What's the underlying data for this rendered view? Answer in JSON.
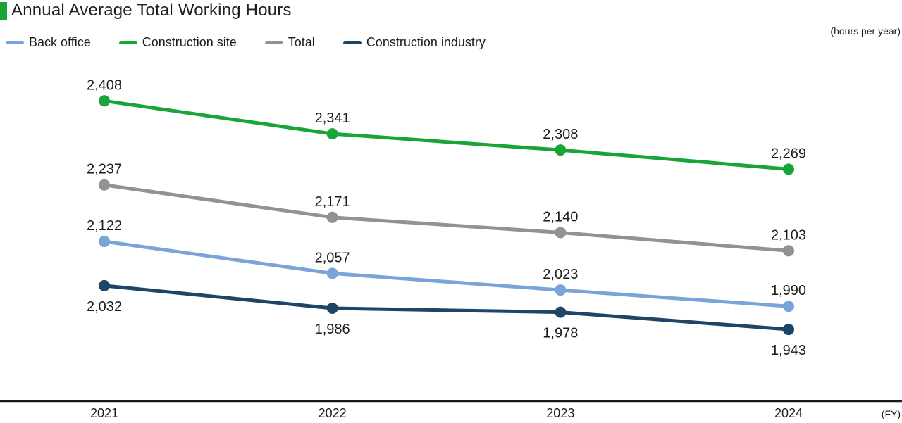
{
  "title": "Annual Average Total Working Hours",
  "title_marker_color": "#18a437",
  "units_note": "(hours per year)",
  "text_color": "#1c1c1c",
  "axis_color": "#1a1a1a",
  "chart_data": {
    "type": "line",
    "title": "Annual Average Total Working Hours",
    "x": [
      "2021",
      "2022",
      "2023",
      "2024"
    ],
    "x_axis_suffix": "(FY)",
    "y_units": "hours per year",
    "ylim": [
      1797,
      2470
    ],
    "grid": false,
    "legend_position": "top-left",
    "data_labels": true,
    "series": [
      {
        "name": "Back office",
        "color": "#78a4d8",
        "values": [
          2122,
          2057,
          2023,
          1990
        ],
        "label_position": "above"
      },
      {
        "name": "Construction site",
        "color": "#18a437",
        "values": [
          2408,
          2341,
          2308,
          2269
        ],
        "label_position": "above"
      },
      {
        "name": "Total",
        "color": "#929292",
        "values": [
          2237,
          2171,
          2140,
          2103
        ],
        "label_position": "above"
      },
      {
        "name": "Construction industry",
        "color": "#1c4568",
        "values": [
          2032,
          1986,
          1978,
          1943
        ],
        "label_position": "below"
      }
    ]
  }
}
